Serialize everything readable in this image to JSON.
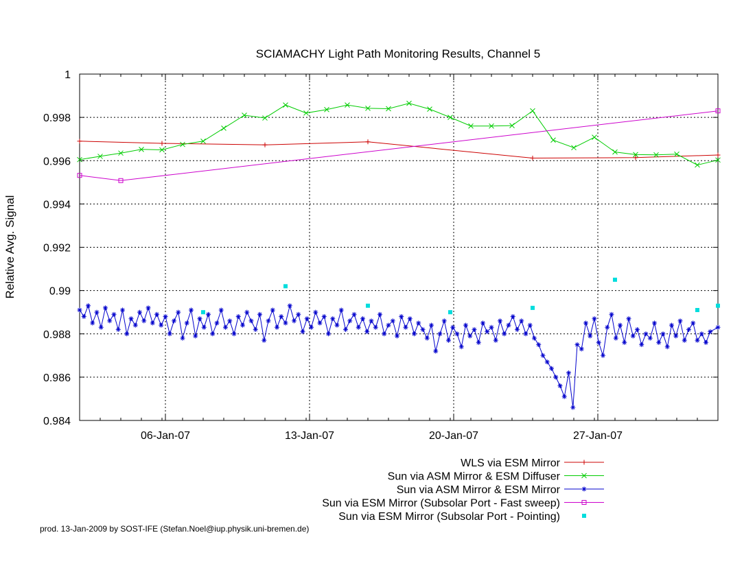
{
  "chart_data": {
    "type": "line",
    "title": "SCIAMACHY Light Path Monitoring Results, Channel 5",
    "xlabel": "",
    "ylabel": "Relative Avg. Signal",
    "x_range": [
      "2007-01-01T20:00",
      "2007-02-01T20:00"
    ],
    "ylim": [
      0.984,
      1.0
    ],
    "x_ticks": [
      {
        "label": "06-Jan-07",
        "x": "2007-01-06"
      },
      {
        "label": "13-Jan-07",
        "x": "2007-01-13"
      },
      {
        "label": "20-Jan-07",
        "x": "2007-01-20"
      },
      {
        "label": "27-Jan-07",
        "x": "2007-01-27"
      }
    ],
    "y_ticks": [
      "0.984",
      "0.986",
      "0.988",
      "0.99",
      "0.992",
      "0.994",
      "0.996",
      "0.998",
      "1"
    ],
    "grid": true,
    "legend_position": "bottom-right",
    "series": [
      {
        "name": "WLS via ESM Mirror",
        "color": "#cc0000",
        "marker": "plus",
        "x": [
          "2007-01-01T20:00",
          "2007-01-05T20:00",
          "2007-01-10T20:00",
          "2007-01-15T20:00",
          "2007-01-23T20:00",
          "2007-01-28T20:00",
          "2007-02-01T20:00"
        ],
        "y": [
          0.9969,
          0.9968,
          0.99673,
          0.99687,
          0.99612,
          0.99614,
          0.99626
        ]
      },
      {
        "name": "Sun via ASM Mirror & ESM Diffuser",
        "color": "#00cc00",
        "marker": "x",
        "x": [
          "2007-01-01T20:00",
          "2007-01-02T20:00",
          "2007-01-03T20:00",
          "2007-01-04T20:00",
          "2007-01-05T20:00",
          "2007-01-06T20:00",
          "2007-01-07T20:00",
          "2007-01-08T20:00",
          "2007-01-09T20:00",
          "2007-01-10T20:00",
          "2007-01-11T20:00",
          "2007-01-12T20:00",
          "2007-01-13T20:00",
          "2007-01-14T20:00",
          "2007-01-15T20:00",
          "2007-01-16T20:00",
          "2007-01-17T20:00",
          "2007-01-18T20:00",
          "2007-01-19T20:00",
          "2007-01-20T20:00",
          "2007-01-21T20:00",
          "2007-01-22T20:00",
          "2007-01-23T20:00",
          "2007-01-24T20:00",
          "2007-01-25T20:00",
          "2007-01-26T20:00",
          "2007-01-27T20:00",
          "2007-01-28T20:00",
          "2007-01-29T20:00",
          "2007-01-30T20:00",
          "2007-01-31T20:00",
          "2007-02-01T20:00"
        ],
        "y": [
          0.99605,
          0.9962,
          0.99635,
          0.99652,
          0.9965,
          0.99675,
          0.9969,
          0.9975,
          0.9981,
          0.99797,
          0.99857,
          0.9982,
          0.99836,
          0.99857,
          0.99842,
          0.9984,
          0.99865,
          0.99838,
          0.998,
          0.9976,
          0.9976,
          0.99762,
          0.9983,
          0.99695,
          0.9966,
          0.99708,
          0.9964,
          0.99628,
          0.99627,
          0.9963,
          0.9958,
          0.99603
        ]
      },
      {
        "name": "Sun via ASM Mirror & ESM Mirror",
        "color": "#0000cc",
        "marker": "star",
        "x": [
          "2007-01-01T20:00",
          "2007-01-02T01:00",
          "2007-01-02T06:00",
          "2007-01-02T11:00",
          "2007-01-02T16:00",
          "2007-01-02T21:00",
          "2007-01-03T02:00",
          "2007-01-03T07:00",
          "2007-01-03T12:00",
          "2007-01-03T17:00",
          "2007-01-03T22:00",
          "2007-01-04T03:00",
          "2007-01-04T08:00",
          "2007-01-04T13:00",
          "2007-01-04T18:00",
          "2007-01-04T23:00",
          "2007-01-05T04:00",
          "2007-01-05T09:00",
          "2007-01-05T14:00",
          "2007-01-05T19:00",
          "2007-01-06T00:00",
          "2007-01-06T05:00",
          "2007-01-06T10:00",
          "2007-01-06T15:00",
          "2007-01-06T20:00",
          "2007-01-07T01:00",
          "2007-01-07T06:00",
          "2007-01-07T11:00",
          "2007-01-07T16:00",
          "2007-01-07T21:00",
          "2007-01-08T02:00",
          "2007-01-08T07:00",
          "2007-01-08T12:00",
          "2007-01-08T17:00",
          "2007-01-08T22:00",
          "2007-01-09T03:00",
          "2007-01-09T08:00",
          "2007-01-09T13:00",
          "2007-01-09T18:00",
          "2007-01-09T23:00",
          "2007-01-10T04:00",
          "2007-01-10T09:00",
          "2007-01-10T14:00",
          "2007-01-10T19:00",
          "2007-01-11T00:00",
          "2007-01-11T05:00",
          "2007-01-11T10:00",
          "2007-01-11T15:00",
          "2007-01-11T20:00",
          "2007-01-12T01:00",
          "2007-01-12T06:00",
          "2007-01-12T11:00",
          "2007-01-12T16:00",
          "2007-01-12T21:00",
          "2007-01-13T02:00",
          "2007-01-13T07:00",
          "2007-01-13T12:00",
          "2007-01-13T17:00",
          "2007-01-13T22:00",
          "2007-01-14T03:00",
          "2007-01-14T08:00",
          "2007-01-14T13:00",
          "2007-01-14T18:00",
          "2007-01-14T23:00",
          "2007-01-15T04:00",
          "2007-01-15T09:00",
          "2007-01-15T14:00",
          "2007-01-15T19:00",
          "2007-01-16T00:00",
          "2007-01-16T05:00",
          "2007-01-16T10:00",
          "2007-01-16T15:00",
          "2007-01-16T20:00",
          "2007-01-17T01:00",
          "2007-01-17T06:00",
          "2007-01-17T11:00",
          "2007-01-17T16:00",
          "2007-01-17T21:00",
          "2007-01-18T02:00",
          "2007-01-18T07:00",
          "2007-01-18T12:00",
          "2007-01-18T17:00",
          "2007-01-18T22:00",
          "2007-01-19T03:00",
          "2007-01-19T08:00",
          "2007-01-19T13:00",
          "2007-01-19T18:00",
          "2007-01-19T23:00",
          "2007-01-20T04:00",
          "2007-01-20T09:00",
          "2007-01-20T14:00",
          "2007-01-20T19:00",
          "2007-01-21T00:00",
          "2007-01-21T05:00",
          "2007-01-21T10:00",
          "2007-01-21T15:00",
          "2007-01-21T20:00",
          "2007-01-22T01:00",
          "2007-01-22T06:00",
          "2007-01-22T11:00",
          "2007-01-22T16:00",
          "2007-01-22T21:00",
          "2007-01-23T02:00",
          "2007-01-23T07:00",
          "2007-01-23T12:00",
          "2007-01-23T17:00",
          "2007-01-23T22:00",
          "2007-01-24T03:00",
          "2007-01-24T08:00",
          "2007-01-24T13:00",
          "2007-01-24T18:00",
          "2007-01-24T23:00",
          "2007-01-25T04:00",
          "2007-01-25T09:00",
          "2007-01-25T14:00",
          "2007-01-25T19:00",
          "2007-01-26T00:00",
          "2007-01-26T05:00",
          "2007-01-26T10:00",
          "2007-01-26T15:00",
          "2007-01-26T20:00",
          "2007-01-27T01:00",
          "2007-01-27T06:00",
          "2007-01-27T11:00",
          "2007-01-27T16:00",
          "2007-01-27T21:00",
          "2007-01-28T02:00",
          "2007-01-28T07:00",
          "2007-01-28T12:00",
          "2007-01-28T17:00",
          "2007-01-28T22:00",
          "2007-01-29T03:00",
          "2007-01-29T08:00",
          "2007-01-29T13:00",
          "2007-01-29T18:00",
          "2007-01-29T23:00",
          "2007-01-30T04:00",
          "2007-01-30T09:00",
          "2007-01-30T14:00",
          "2007-01-30T19:00",
          "2007-01-31T00:00",
          "2007-01-31T05:00",
          "2007-01-31T10:00",
          "2007-01-31T15:00",
          "2007-01-31T20:00",
          "2007-02-01T01:00",
          "2007-02-01T06:00",
          "2007-02-01T11:00",
          "2007-02-01T20:00"
        ],
        "y": [
          0.9891,
          0.9888,
          0.9893,
          0.9885,
          0.989,
          0.9883,
          0.9892,
          0.9886,
          0.9889,
          0.9882,
          0.9891,
          0.988,
          0.9887,
          0.9884,
          0.989,
          0.9886,
          0.9892,
          0.9885,
          0.9889,
          0.9884,
          0.9888,
          0.988,
          0.9886,
          0.989,
          0.9878,
          0.9885,
          0.9891,
          0.9879,
          0.9887,
          0.9883,
          0.9889,
          0.988,
          0.9885,
          0.9891,
          0.9883,
          0.9886,
          0.988,
          0.9888,
          0.9884,
          0.989,
          0.9886,
          0.9882,
          0.9889,
          0.9877,
          0.9886,
          0.9891,
          0.9883,
          0.9888,
          0.9885,
          0.9893,
          0.9886,
          0.9889,
          0.9881,
          0.9887,
          0.9883,
          0.989,
          0.9885,
          0.9888,
          0.988,
          0.9887,
          0.9884,
          0.9891,
          0.9882,
          0.9886,
          0.9889,
          0.9883,
          0.9887,
          0.9881,
          0.9886,
          0.9883,
          0.9889,
          0.988,
          0.9884,
          0.9886,
          0.9879,
          0.9888,
          0.9883,
          0.9887,
          0.988,
          0.9885,
          0.9882,
          0.9878,
          0.9884,
          0.9872,
          0.988,
          0.9886,
          0.9877,
          0.9883,
          0.988,
          0.9874,
          0.9884,
          0.9879,
          0.9882,
          0.9876,
          0.9885,
          0.9881,
          0.9883,
          0.9877,
          0.9886,
          0.988,
          0.9884,
          0.9888,
          0.9882,
          0.9886,
          0.988,
          0.9884,
          0.9878,
          0.9875,
          0.987,
          0.9867,
          0.9864,
          0.986,
          0.9856,
          0.9851,
          0.9862,
          0.9846,
          0.9875,
          0.9873,
          0.9885,
          0.9879,
          0.9887,
          0.9876,
          0.987,
          0.9883,
          0.9889,
          0.9878,
          0.9884,
          0.9876,
          0.9887,
          0.9879,
          0.9882,
          0.9875,
          0.988,
          0.9878,
          0.9885,
          0.9876,
          0.988,
          0.9874,
          0.9884,
          0.9879,
          0.9886,
          0.9877,
          0.9882,
          0.9885,
          0.9877,
          0.988,
          0.9876,
          0.9881,
          0.9883
        ]
      },
      {
        "name": "Sun via ESM Mirror (Subsolar Port - Fast sweep)",
        "color": "#cc00cc",
        "marker": "box",
        "x": [
          "2007-01-01T20:00",
          "2007-01-03T20:00",
          "2007-02-01T20:00"
        ],
        "y": [
          0.99532,
          0.99508,
          0.9983
        ]
      },
      {
        "name": "Sun via ESM Mirror (Subsolar Port - Pointing)",
        "color": "#00dddd",
        "marker": "dot",
        "points_only": true,
        "x": [
          "2007-01-07T20:00",
          "2007-01-11T20:00",
          "2007-01-15T20:00",
          "2007-01-19T20:00",
          "2007-01-23T20:00",
          "2007-01-27T20:00",
          "2007-01-31T20:00",
          "2007-02-01T20:00"
        ],
        "y": [
          0.989,
          0.9902,
          0.9893,
          0.989,
          0.9892,
          0.9905,
          0.9891,
          0.9893
        ]
      }
    ]
  },
  "credit": "prod. 13-Jan-2009 by SOST-IFE (Stefan.Noel@iup.physik.uni-bremen.de)"
}
